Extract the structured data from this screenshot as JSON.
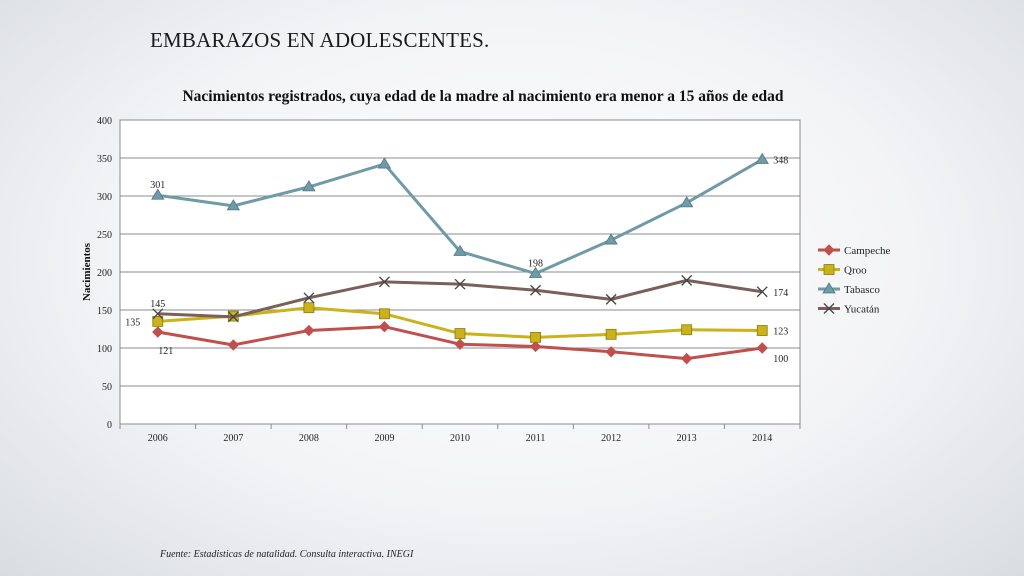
{
  "slide": {
    "title": "EMBARAZOS EN ADOLESCENTES.",
    "source": "Fuente:  Estadisticas de  natalidad. Consulta interactiva. INEGI"
  },
  "chart_data": {
    "type": "line",
    "title": "Nacimientos registrados, cuya edad de la madre al nacimiento era menor a 15 años de edad",
    "xlabel": "",
    "ylabel": "Nacimientos",
    "categories": [
      "2006",
      "2007",
      "2008",
      "2009",
      "2010",
      "2011",
      "2012",
      "2013",
      "2014"
    ],
    "ylim": [
      0,
      400
    ],
    "yticks": [
      0,
      50,
      100,
      150,
      200,
      250,
      300,
      350,
      400
    ],
    "grid": true,
    "legend_position": "right",
    "series": [
      {
        "name": "Campeche",
        "color": "#c0504d",
        "marker": "diamond",
        "values": [
          121,
          104,
          123,
          128,
          105,
          102,
          95,
          86,
          100
        ]
      },
      {
        "name": "Qroo",
        "color": "#c9b21a",
        "marker": "square",
        "values": [
          135,
          142,
          153,
          145,
          119,
          114,
          118,
          124,
          123
        ]
      },
      {
        "name": "Tabasco",
        "color": "#6f9aa6",
        "marker": "triangle",
        "values": [
          301,
          287,
          312,
          342,
          227,
          198,
          242,
          291,
          348
        ]
      },
      {
        "name": "Yucatán",
        "color": "#7a6058",
        "marker": "x",
        "values": [
          145,
          141,
          166,
          187,
          184,
          176,
          164,
          189,
          174
        ]
      }
    ],
    "data_labels": [
      {
        "series": "Tabasco",
        "index": 0,
        "text": "301",
        "pos": "above"
      },
      {
        "series": "Tabasco",
        "index": 5,
        "text": "198",
        "pos": "above"
      },
      {
        "series": "Tabasco",
        "index": 8,
        "text": "348",
        "pos": "right"
      },
      {
        "series": "Yucatán",
        "index": 0,
        "text": "145",
        "pos": "above"
      },
      {
        "series": "Yucatán",
        "index": 8,
        "text": "174",
        "pos": "right"
      },
      {
        "series": "Qroo",
        "index": 0,
        "text": "135",
        "pos": "left"
      },
      {
        "series": "Qroo",
        "index": 8,
        "text": "123",
        "pos": "right"
      },
      {
        "series": "Campeche",
        "index": 0,
        "text": "121",
        "pos": "below"
      },
      {
        "series": "Campeche",
        "index": 8,
        "text": "100",
        "pos": "belowright"
      }
    ]
  }
}
